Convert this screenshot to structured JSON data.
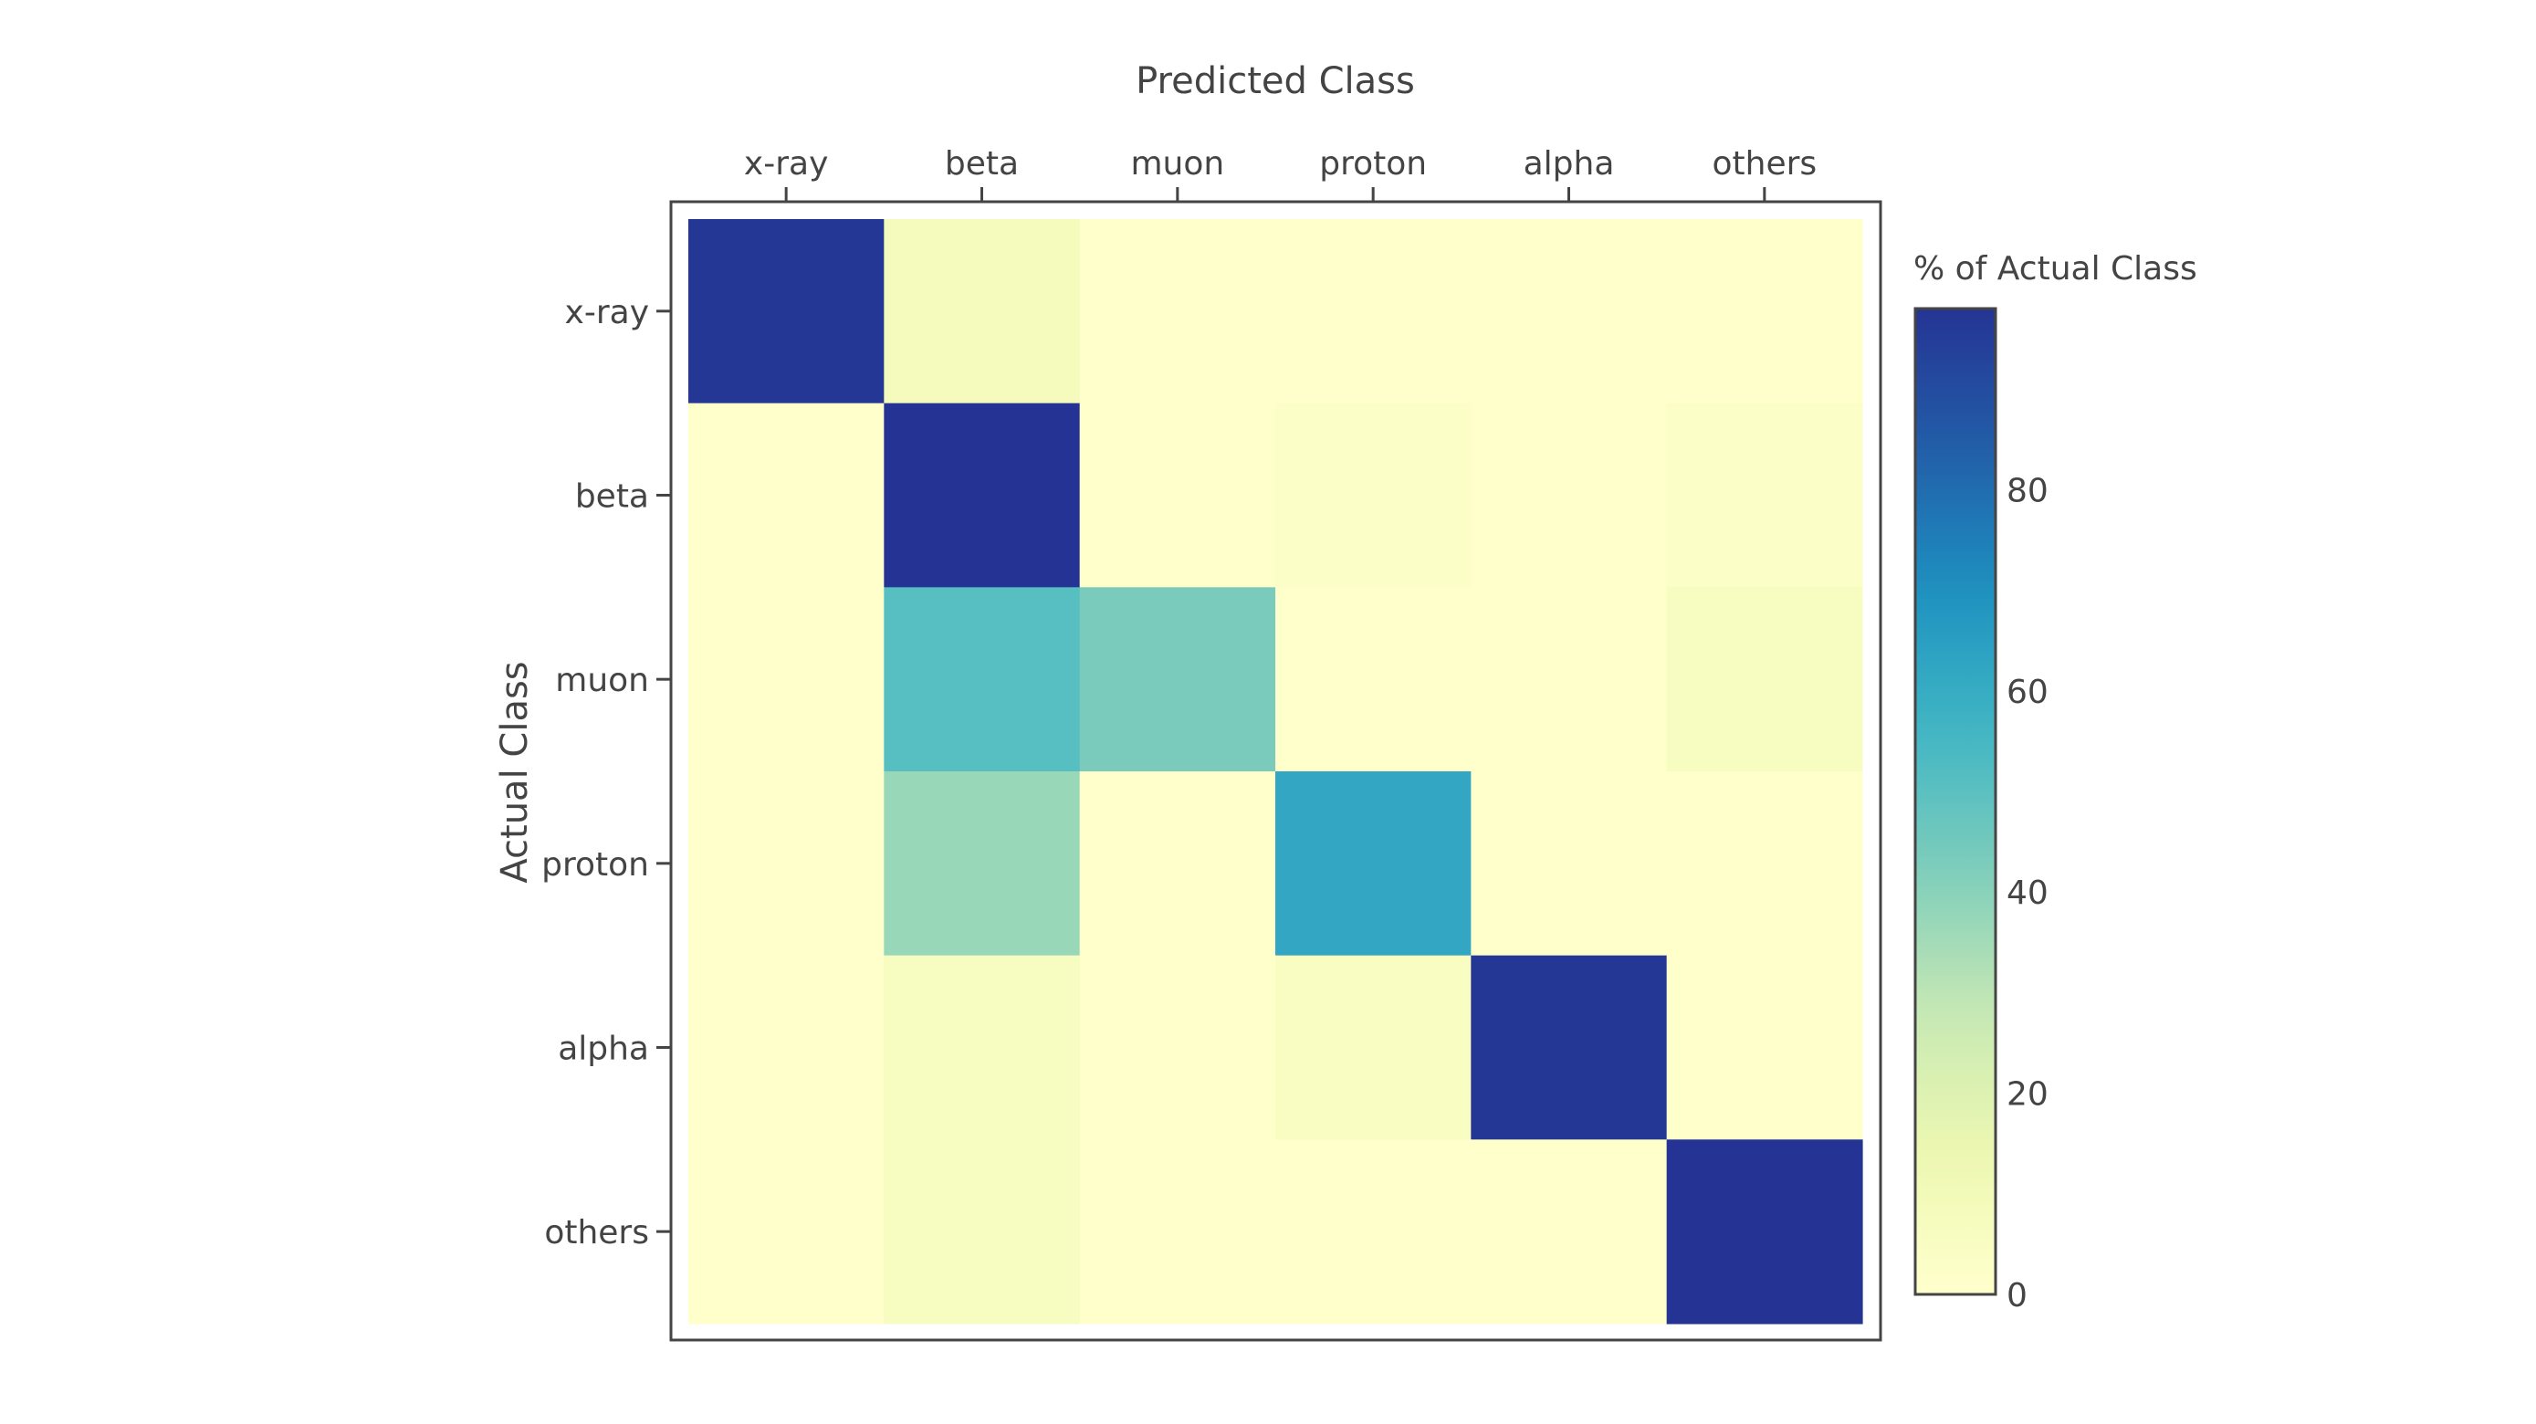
{
  "chart_data": {
    "type": "heatmap",
    "title": "Predicted Class",
    "xlabel": "Predicted Class",
    "ylabel": "Actual Class",
    "x_categories": [
      "x-ray",
      "beta",
      "muon",
      "proton",
      "alpha",
      "others"
    ],
    "y_categories": [
      "x-ray",
      "beta",
      "muon",
      "proton",
      "alpha",
      "others"
    ],
    "values": [
      [
        97,
        8,
        1,
        1,
        1,
        1
      ],
      [
        1,
        98,
        1,
        2,
        1,
        3
      ],
      [
        1,
        51,
        43,
        1,
        1,
        6
      ],
      [
        1,
        37,
        1,
        62,
        1,
        1
      ],
      [
        1,
        6,
        1,
        5,
        97,
        1
      ],
      [
        1,
        6,
        1,
        1,
        1,
        98
      ]
    ],
    "colorscale": "YlGnBu",
    "colorbar": {
      "title": "% of Actual Class",
      "range": [
        0,
        98
      ],
      "ticks": [
        0,
        20,
        40,
        60,
        80
      ]
    }
  }
}
